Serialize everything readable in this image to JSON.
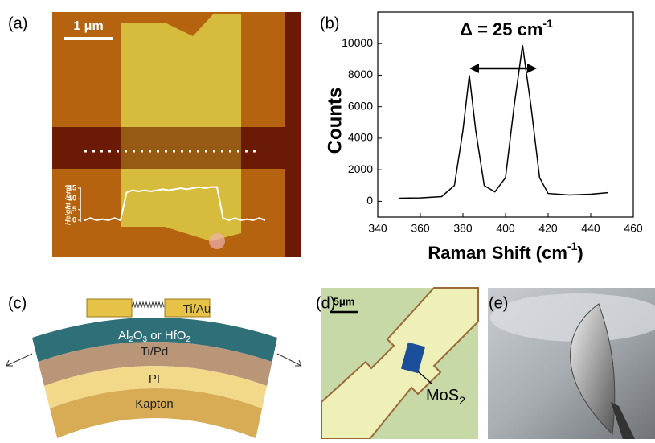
{
  "panel_labels": [
    "(a)",
    "(b)",
    "(c)",
    "(d)",
    "(e)"
  ],
  "panel_a": {
    "scale_bar": "1 μm",
    "inset": {
      "ylabel": "Height (nm)",
      "ylim": [
        0,
        15
      ],
      "yticks": [
        0,
        5,
        10,
        15
      ],
      "profile": [
        0,
        1,
        0,
        0.5,
        0,
        1,
        0,
        13,
        14,
        13.5,
        14,
        13.5,
        14,
        14.5,
        14,
        14.5,
        15,
        14.5,
        15,
        15.5,
        15,
        15.5,
        15.5,
        1,
        0,
        1,
        0,
        0.5,
        0,
        1,
        0
      ]
    }
  },
  "chart_data": {
    "type": "line",
    "xlabel": [
      "Raman Shift (cm",
      "-1",
      ")"
    ],
    "ylabel": "Counts",
    "annotation": [
      "Δ = 25 cm",
      "-1"
    ],
    "x": [
      350,
      360,
      370,
      376,
      380,
      383,
      386,
      390,
      395,
      400,
      404,
      408,
      412,
      416,
      420,
      430,
      440,
      448
    ],
    "series": [
      {
        "color": "#000000",
        "values": [
          200,
          220,
          300,
          1000,
          4500,
          8000,
          4500,
          1000,
          600,
          1500,
          6000,
          9900,
          6000,
          1500,
          500,
          400,
          450,
          550
        ]
      }
    ],
    "xlim": [
      340,
      460
    ],
    "xticks": [
      340,
      360,
      380,
      400,
      420,
      440,
      460
    ],
    "ylim": [
      -1000,
      12000
    ],
    "yticks": [
      0,
      2000,
      4000,
      6000,
      8000,
      10000
    ]
  },
  "panel_c": {
    "layers": [
      [
        "Ti/Au"
      ],
      [
        "Al",
        "2",
        "O",
        "3",
        " or HfO",
        "2"
      ],
      [
        "Ti/Pd"
      ],
      [
        "PI"
      ],
      [
        "Kapton"
      ]
    ]
  },
  "panel_d": {
    "scale_bar": "5μm",
    "label": [
      "MoS",
      "2"
    ]
  }
}
